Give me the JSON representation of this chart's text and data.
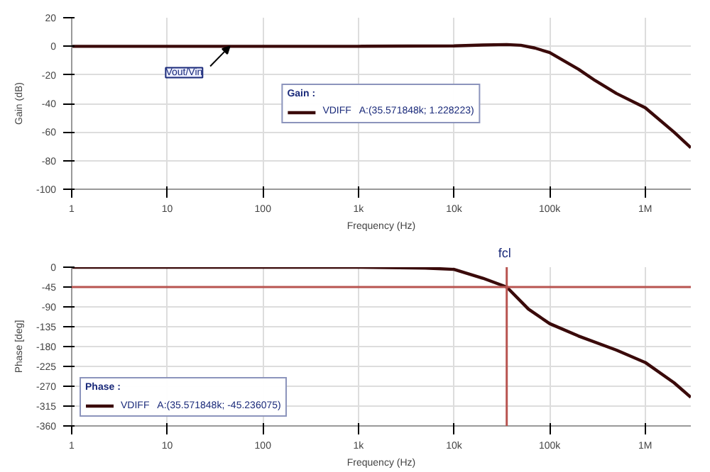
{
  "chart_data": [
    {
      "type": "line",
      "xlabel": "Frequency (Hz)",
      "ylabel": "Gain (dB)",
      "legend_title": "Gain :",
      "log": "x",
      "grid": true,
      "legend": "center",
      "xlim": [
        1,
        3000000
      ],
      "ylim": [
        -100,
        20
      ],
      "xticks": [
        1,
        10,
        100,
        {
          "value": 1000,
          "label": "1k"
        },
        {
          "value": 10000,
          "label": "10k"
        },
        {
          "value": 100000,
          "label": "100k"
        },
        {
          "value": 1000000,
          "label": "1M"
        }
      ],
      "yticks": [
        -100,
        -80,
        -60,
        -40,
        -20,
        0,
        20
      ],
      "annotations": [
        {
          "text": "Vout/Vin",
          "x": 45,
          "y": 0
        }
      ],
      "series": [
        {
          "name": "VDIFF   A:(35.571848k; 1.228223)",
          "color": "#3a0a0a",
          "x": [
            1,
            1000,
            10000,
            20000,
            35571.848,
            50000,
            70000,
            100000,
            200000,
            300000,
            500000,
            1000000,
            2000000,
            3000000
          ],
          "values": [
            0,
            0,
            0.3,
            0.9,
            1.2,
            0.7,
            -1.2,
            -4.4,
            -16,
            -24,
            -33,
            -43,
            -60,
            -71
          ]
        }
      ]
    },
    {
      "type": "line",
      "xlabel": "Frequency (Hz)",
      "ylabel": "Phase [deg]",
      "legend_title": "Phase :",
      "log": "x",
      "grid": true,
      "legend": "bottom left",
      "xlim": [
        1,
        3000000
      ],
      "ylim": [
        -360,
        0
      ],
      "xticks": [
        1,
        10,
        100,
        {
          "value": 1000,
          "label": "1k"
        },
        {
          "value": 10000,
          "label": "10k"
        },
        {
          "value": 100000,
          "label": "100k"
        },
        {
          "value": 1000000,
          "label": "1M"
        }
      ],
      "yticks": [
        -360,
        -315,
        -270,
        -225,
        -180,
        -135,
        -90,
        -45,
        0
      ],
      "ref_lines": [
        {
          "axis": "y",
          "value": -45,
          "label": null,
          "color": "#b85450"
        },
        {
          "axis": "x",
          "value": 35571.848,
          "label": "fcl",
          "color": "#b85450"
        }
      ],
      "series": [
        {
          "name": "VDIFF   A:(35.571848k; -45.236075)",
          "color": "#3a0a0a",
          "x": [
            1,
            1000,
            5000,
            10000,
            20000,
            35571.848,
            60000,
            100000,
            200000,
            500000,
            1000000,
            2000000,
            3000000
          ],
          "values": [
            0,
            0,
            -2,
            -5,
            -25,
            -45,
            -95,
            -128,
            -156,
            -188,
            -216,
            -262,
            -295
          ]
        }
      ]
    }
  ]
}
